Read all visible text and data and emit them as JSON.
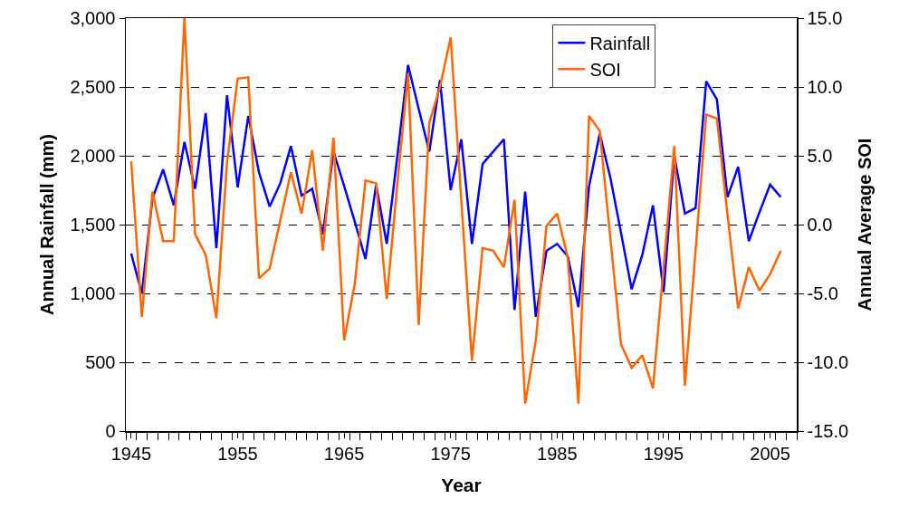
{
  "chart_data": {
    "type": "line",
    "xlabel": "Year",
    "ylabel": "Annual Rainfall (mm)",
    "y2label": "Annual Average SOI",
    "x": [
      1945,
      1946,
      1947,
      1948,
      1949,
      1950,
      1951,
      1952,
      1953,
      1954,
      1955,
      1956,
      1957,
      1958,
      1959,
      1960,
      1961,
      1962,
      1963,
      1964,
      1965,
      1966,
      1967,
      1968,
      1969,
      1970,
      1971,
      1972,
      1973,
      1974,
      1975,
      1976,
      1977,
      1978,
      1979,
      1980,
      1981,
      1982,
      1983,
      1984,
      1985,
      1986,
      1987,
      1988,
      1989,
      1990,
      1991,
      1992,
      1993,
      1994,
      1995,
      1996,
      1997,
      1998,
      1999,
      2000,
      2001,
      2002,
      2003,
      2004,
      2005,
      2006
    ],
    "series": [
      {
        "name": "Rainfall",
        "color": "#0000ff",
        "values": [
          1290,
          1000,
          1690,
          1900,
          1640,
          2100,
          1760,
          2310,
          1330,
          2440,
          1770,
          2290,
          1880,
          1630,
          1800,
          2070,
          1710,
          1760,
          1430,
          2030,
          1780,
          1520,
          1250,
          1790,
          1360,
          2000,
          2660,
          2340,
          2030,
          2550,
          1750,
          2120,
          1360,
          1940,
          2030,
          2120,
          880,
          1740,
          830,
          1310,
          1360,
          1270,
          900,
          1780,
          2160,
          1840,
          1440,
          1030,
          1280,
          1640,
          1010,
          2000,
          1580,
          1620,
          2540,
          2410,
          1700,
          1920,
          1380,
          1590,
          1790,
          1700
        ]
      },
      {
        "name": "SOI",
        "color": "#ff6600",
        "axis": "y2",
        "values": [
          4.6,
          -6.7,
          2.4,
          -1.2,
          -1.2,
          15.0,
          -0.7,
          -2.2,
          -6.8,
          4.5,
          10.6,
          10.7,
          -3.9,
          -3.2,
          0.3,
          3.8,
          0.8,
          5.4,
          -1.9,
          6.3,
          -8.4,
          -4.3,
          3.2,
          3.0,
          -5.4,
          3.0,
          11.0,
          -7.3,
          7.4,
          10.0,
          13.6,
          1.8,
          -9.9,
          -1.7,
          -1.9,
          -3.1,
          1.8,
          -13.0,
          -8.4,
          -0.1,
          0.8,
          -2.4,
          -13.0,
          7.9,
          6.8,
          -1.0,
          -8.7,
          -10.4,
          -9.5,
          -11.9,
          -3.1,
          5.7,
          -11.7,
          -1.9,
          8.0,
          7.7,
          0.7,
          -6.1,
          -3.1,
          -4.8,
          -3.6,
          -1.9
        ]
      }
    ],
    "xlim": [
      1944.5,
      2007.5
    ],
    "xticks": [
      1945,
      1955,
      1965,
      1975,
      1985,
      1995,
      2005
    ],
    "ylim": [
      0,
      3000
    ],
    "yticks": [
      0,
      500,
      {
        "value": 1000,
        "label": "1,000"
      },
      {
        "value": 1500,
        "label": "1,500"
      },
      {
        "value": 2000,
        "label": "2,000"
      },
      {
        "value": 2500,
        "label": "2,500"
      },
      {
        "value": 3000,
        "label": "3,000"
      }
    ],
    "y2lim": [
      -15,
      15
    ],
    "y2ticks": [
      {
        "value": -15,
        "label": "-15.0"
      },
      {
        "value": -10,
        "label": "-10.0"
      },
      {
        "value": -5,
        "label": "-5.0"
      },
      {
        "value": 0,
        "label": "0.0"
      },
      {
        "value": 5,
        "label": "5.0"
      },
      {
        "value": 10,
        "label": "10.0"
      },
      {
        "value": 15,
        "label": "15.0"
      }
    ],
    "grid": "y",
    "legend": "top right",
    "marker": "none",
    "line_style": "solid"
  }
}
